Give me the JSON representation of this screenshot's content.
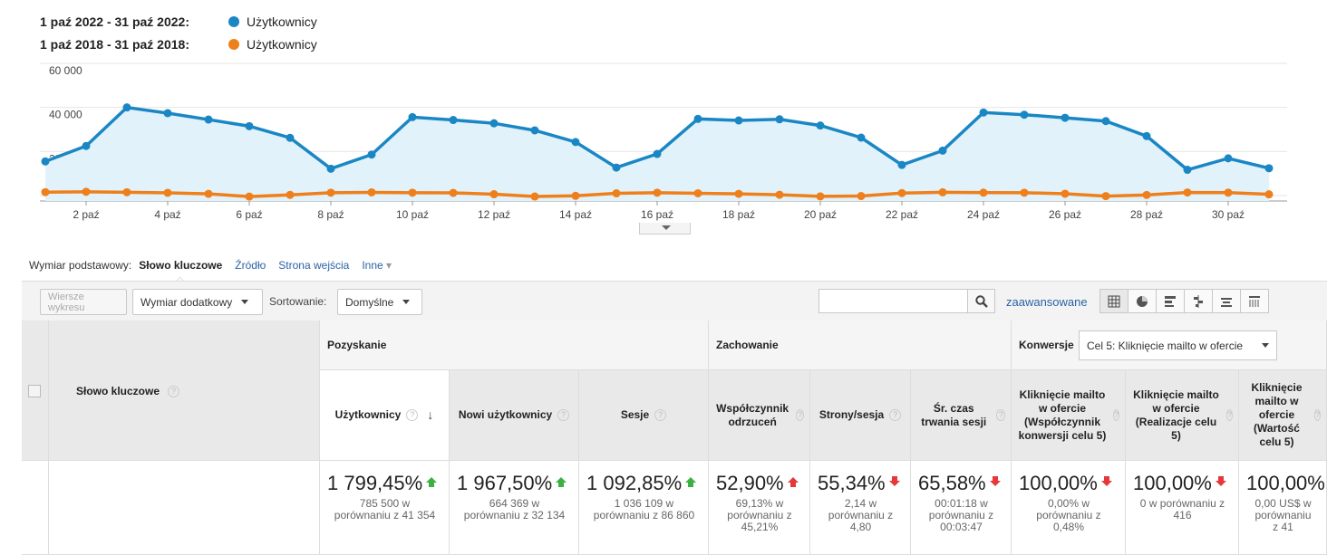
{
  "legend": [
    {
      "range": "1 paź 2022 - 31 paź 2022:",
      "series": "Użytkownicy",
      "color": "#1a87c4"
    },
    {
      "range": "1 paź 2018 - 31 paź 2018:",
      "series": "Użytkownicy",
      "color": "#ef7f1a"
    }
  ],
  "chart_data": {
    "type": "line",
    "x": [
      "1 paź",
      "2 paź",
      "3 paź",
      "4 paź",
      "5 paź",
      "6 paź",
      "7 paź",
      "8 paź",
      "9 paź",
      "10 paź",
      "11 paź",
      "12 paź",
      "13 paź",
      "14 paź",
      "15 paź",
      "16 paź",
      "17 paź",
      "18 paź",
      "19 paź",
      "20 paź",
      "21 paź",
      "22 paź",
      "23 paź",
      "24 paź",
      "25 paź",
      "26 paź",
      "27 paź",
      "28 paź",
      "29 paź",
      "30 paź",
      "31 paź"
    ],
    "tick_labels": [
      "2 paź",
      "4 paź",
      "6 paź",
      "8 paź",
      "10 paź",
      "12 paź",
      "14 paź",
      "16 paź",
      "18 paź",
      "20 paź",
      "22 paź",
      "24 paź",
      "26 paź",
      "28 paź",
      "30 paź"
    ],
    "y_ticks": [
      "60 000",
      "40 000",
      "20 000"
    ],
    "ylim": [
      0,
      60000
    ],
    "grid": true,
    "series": [
      {
        "name": "Użytkownicy",
        "color": "#1a87c4",
        "area": true,
        "values": [
          15500,
          22500,
          40000,
          37400,
          34500,
          31500,
          26200,
          12200,
          18600,
          35600,
          34300,
          32800,
          29600,
          24300,
          12700,
          18900,
          34800,
          34100,
          34600,
          31800,
          26300,
          13900,
          20400,
          37700,
          36700,
          35300,
          33800,
          27000,
          11700,
          16900,
          12400
        ]
      },
      {
        "name": "Użytkownicy",
        "color": "#ef7f1a",
        "area": false,
        "values": [
          1550,
          1720,
          1500,
          1250,
          780,
          -450,
          330,
          1300,
          1450,
          1300,
          1220,
          610,
          -420,
          -110,
          1010,
          1300,
          1040,
          790,
          380,
          -380,
          -210,
          1130,
          1480,
          1310,
          1300,
          830,
          -240,
          280,
          1400,
          1320,
          560
        ]
      }
    ]
  },
  "dimension_bar": {
    "label": "Wymiar podstawowy:",
    "active": "Słowo kluczowe",
    "links": [
      "Źródło",
      "Strona wejścia"
    ],
    "other": "Inne"
  },
  "toolbar": {
    "plot_rows": "Wiersze wykresu",
    "secondary_dim": "Wymiar dodatkowy",
    "sort_label": "Sortowanie:",
    "sort_value": "Domyślne",
    "advanced": "zaawansowane"
  },
  "table": {
    "dim_header": "Słowo kluczowe",
    "groups": {
      "acquisition": "Pozyskanie",
      "behavior": "Zachowanie",
      "conversions": "Konwersje"
    },
    "goal_select": "Cel 5: Kliknięcie mailto w ofercie",
    "columns": [
      {
        "h": "Użytkownicy",
        "value": "1 799,45%",
        "trend": "up",
        "sub": "785 500 w porównaniu z 41 354"
      },
      {
        "h": "Nowi użytkownicy",
        "value": "1 967,50%",
        "trend": "up",
        "sub": "664 369 w porównaniu z 32 134"
      },
      {
        "h": "Sesje",
        "value": "1 092,85%",
        "trend": "up",
        "sub": "1 036 109 w porównaniu z 86 860"
      },
      {
        "h": "Współczynnik odrzuceń",
        "value": "52,90%",
        "trend": "up-red",
        "sub": "69,13% w porównaniu z 45,21%"
      },
      {
        "h": "Strony/sesja",
        "value": "55,34%",
        "trend": "down",
        "sub": "2,14 w porównaniu z 4,80"
      },
      {
        "h": "Śr. czas trwania sesji",
        "value": "65,58%",
        "trend": "down",
        "sub": "00:01:18 w porównaniu z 00:03:47"
      },
      {
        "h": "Kliknięcie mailto w ofercie (Współczynnik konwersji celu 5)",
        "value": "100,00%",
        "trend": "down",
        "sub": "0,00% w porównaniu z 0,48%"
      },
      {
        "h": "Kliknięcie mailto w ofercie (Realizacje celu 5)",
        "value": "100,00%",
        "trend": "down",
        "sub": "0 w porównaniu z 416"
      },
      {
        "h": "Kliknięcie mailto w ofercie (Wartość celu 5)",
        "value": "100,00%",
        "trend": "down",
        "sub": "0,00 US$ w porównaniu z 41"
      }
    ]
  }
}
